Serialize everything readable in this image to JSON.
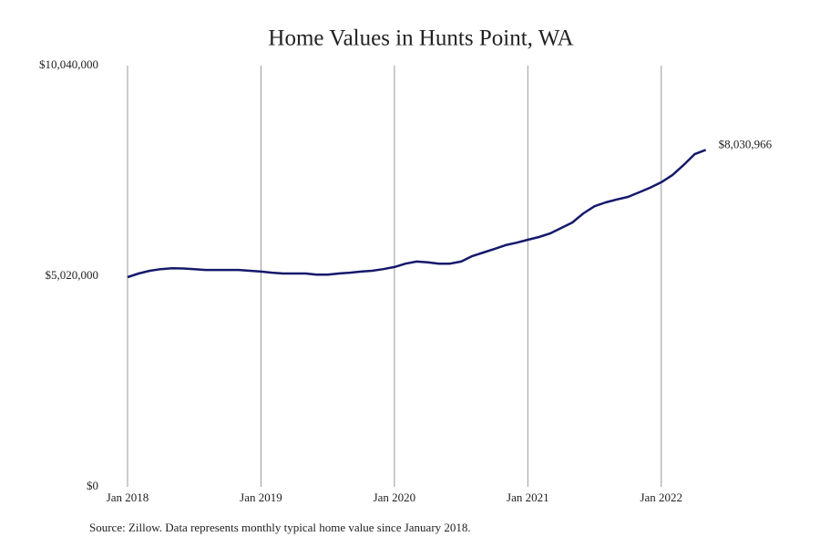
{
  "chart_data": {
    "type": "line",
    "title": "Home Values in Hunts Point, WA",
    "source": "Source: Zillow. Data represents monthly typical home value since January 2018.",
    "x": [
      "2018-01",
      "2018-02",
      "2018-03",
      "2018-04",
      "2018-05",
      "2018-06",
      "2018-07",
      "2018-08",
      "2018-09",
      "2018-10",
      "2018-11",
      "2018-12",
      "2019-01",
      "2019-02",
      "2019-03",
      "2019-04",
      "2019-05",
      "2019-06",
      "2019-07",
      "2019-08",
      "2019-09",
      "2019-10",
      "2019-11",
      "2019-12",
      "2020-01",
      "2020-02",
      "2020-03",
      "2020-04",
      "2020-05",
      "2020-06",
      "2020-07",
      "2020-08",
      "2020-09",
      "2020-10",
      "2020-11",
      "2020-12",
      "2021-01",
      "2021-02",
      "2021-03",
      "2021-04",
      "2021-05",
      "2021-06",
      "2021-07",
      "2021-08",
      "2021-09",
      "2021-10",
      "2021-11",
      "2021-12",
      "2022-01",
      "2022-02",
      "2022-03",
      "2022-04",
      "2022-05"
    ],
    "values": [
      4998000,
      5085000,
      5150000,
      5190000,
      5210000,
      5205000,
      5190000,
      5170000,
      5170000,
      5170000,
      5170000,
      5150000,
      5130000,
      5105000,
      5085000,
      5085000,
      5085000,
      5060000,
      5060000,
      5085000,
      5105000,
      5130000,
      5150000,
      5190000,
      5240000,
      5320000,
      5370000,
      5350000,
      5320000,
      5320000,
      5370000,
      5500000,
      5585000,
      5670000,
      5760000,
      5820000,
      5890000,
      5955000,
      6040000,
      6170000,
      6300000,
      6520000,
      6690000,
      6780000,
      6850000,
      6910000,
      7020000,
      7130000,
      7260000,
      7430000,
      7670000,
      7930000,
      8030966
    ],
    "value_labels": [
      null,
      null,
      null,
      null,
      null,
      null,
      null,
      null,
      null,
      null,
      null,
      null,
      null,
      null,
      null,
      null,
      null,
      null,
      null,
      null,
      null,
      null,
      null,
      null,
      null,
      null,
      null,
      null,
      null,
      null,
      null,
      null,
      null,
      null,
      null,
      null,
      null,
      null,
      null,
      null,
      null,
      null,
      null,
      null,
      null,
      null,
      null,
      null,
      null,
      null,
      null,
      null,
      "$8,030,966"
    ],
    "color": "#15196b",
    "xlim": [
      "2018-01",
      "2022-07"
    ],
    "xticks": [
      {
        "value": "2018-01",
        "label": "Jan 2018"
      },
      {
        "value": "2019-01",
        "label": "Jan 2019"
      },
      {
        "value": "2020-01",
        "label": "Jan 2020"
      },
      {
        "value": "2021-01",
        "label": "Jan 2021"
      },
      {
        "value": "2022-01",
        "label": "Jan 2022"
      }
    ],
    "ylim": [
      0,
      10040000
    ],
    "yticks": [
      {
        "value": 0,
        "label": "$0"
      },
      {
        "value": 5020000,
        "label": "$5,020,000"
      },
      {
        "value": 10040000,
        "label": "$10,040,000"
      }
    ],
    "grid": "x"
  }
}
